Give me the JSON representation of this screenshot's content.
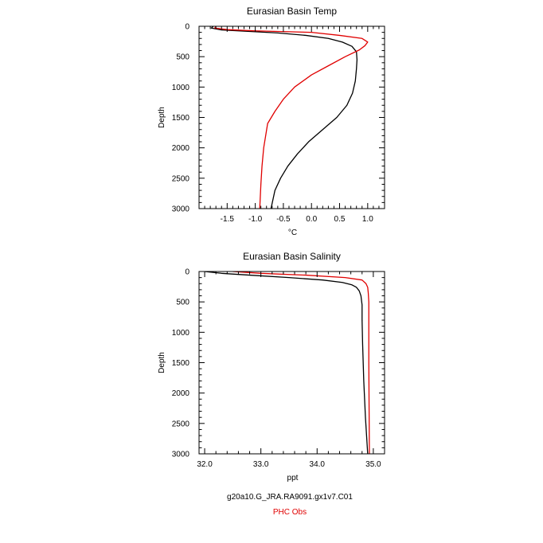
{
  "colors": {
    "model": "#000000",
    "obs": "#e00000",
    "axis": "#000000",
    "background": "#ffffff"
  },
  "legend": {
    "model_label": "g20a10.G_JRA.RA9091.gx1v7.C01",
    "obs_label": "PHC Obs"
  },
  "chart_data": [
    {
      "type": "line",
      "title": "Eurasian Basin Temp",
      "xlabel": "°C",
      "ylabel": "Depth",
      "xlim": [
        -2.0,
        1.3
      ],
      "ylim": [
        3000,
        0
      ],
      "y_inverted": true,
      "grid": false,
      "legend_position": "below",
      "xticks": [
        -1.5,
        -1.0,
        -0.5,
        0.0,
        0.5,
        1.0
      ],
      "xtick_labels": [
        "-1.5",
        "-1.0",
        "-0.5",
        "0.0",
        "0.5",
        "1.0"
      ],
      "yticks": [
        0,
        500,
        1000,
        1500,
        2000,
        2500,
        3000
      ],
      "ytick_labels": [
        "0",
        "500",
        "1000",
        "1500",
        "2000",
        "2500",
        "3000"
      ],
      "series": [
        {
          "name": "g20a10.G_JRA.RA9091.gx1v7.C01",
          "x": [
            -1.75,
            -1.78,
            -1.6,
            -1.2,
            -0.6,
            -0.1,
            0.3,
            0.55,
            0.72,
            0.8,
            0.81,
            0.8,
            0.78,
            0.73,
            0.63,
            0.45,
            0.2,
            -0.05,
            -0.25,
            -0.42,
            -0.55,
            -0.65,
            -0.72
          ],
          "y": [
            0,
            30,
            60,
            80,
            110,
            150,
            200,
            260,
            330,
            420,
            550,
            700,
            900,
            1100,
            1300,
            1500,
            1700,
            1900,
            2100,
            2300,
            2500,
            2700,
            3000
          ]
        },
        {
          "name": "PHC Obs",
          "x": [
            -1.7,
            -1.72,
            -1.5,
            -1.0,
            0.0,
            0.5,
            0.9,
            1.0,
            0.95,
            0.85,
            0.6,
            0.3,
            0.0,
            -0.3,
            -0.5,
            -0.65,
            -0.78,
            -0.85,
            -0.88,
            -0.9,
            -0.92
          ],
          "y": [
            0,
            30,
            55,
            75,
            100,
            150,
            200,
            260,
            320,
            390,
            500,
            650,
            800,
            1000,
            1200,
            1400,
            1600,
            2000,
            2300,
            2600,
            3000
          ]
        }
      ]
    },
    {
      "type": "line",
      "title": "Eurasian Basin Salinity",
      "xlabel": "ppt",
      "ylabel": "Depth",
      "xlim": [
        31.9,
        35.2
      ],
      "ylim": [
        3000,
        0
      ],
      "y_inverted": true,
      "grid": false,
      "legend_position": "below",
      "xticks": [
        32.0,
        33.0,
        34.0,
        35.0
      ],
      "xtick_labels": [
        "32.0",
        "33.0",
        "34.0",
        "35.0"
      ],
      "yticks": [
        0,
        500,
        1000,
        1500,
        2000,
        2500,
        3000
      ],
      "ytick_labels": [
        "0",
        "500",
        "1000",
        "1500",
        "2000",
        "2500",
        "3000"
      ],
      "series": [
        {
          "name": "g20a10.G_JRA.RA9091.gx1v7.C01",
          "x": [
            32.0,
            32.3,
            32.8,
            33.5,
            34.1,
            34.45,
            34.62,
            34.7,
            34.75,
            34.78,
            34.8,
            34.8,
            34.81,
            34.83,
            34.86,
            34.9
          ],
          "y": [
            0,
            30,
            60,
            100,
            140,
            180,
            220,
            260,
            320,
            400,
            550,
            800,
            1200,
            1800,
            2400,
            3000
          ]
        },
        {
          "name": "PHC Obs",
          "x": [
            32.5,
            33.0,
            33.8,
            34.5,
            34.8,
            34.87,
            34.9,
            34.91,
            34.92,
            34.92,
            34.92,
            34.93
          ],
          "y": [
            0,
            30,
            60,
            100,
            140,
            200,
            260,
            350,
            500,
            800,
            1500,
            3000
          ]
        }
      ]
    }
  ]
}
